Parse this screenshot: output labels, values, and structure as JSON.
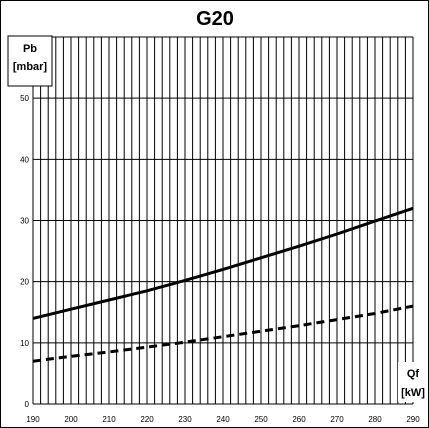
{
  "chart_data": {
    "type": "line",
    "title": "G20",
    "ylabel_line1": "Pb",
    "ylabel_line2": "[mbar]",
    "xlabel_line1": "Qf",
    "xlabel_line2": "[kW]",
    "xlim": [
      190,
      290
    ],
    "ylim": [
      0,
      60
    ],
    "x_ticks": [
      190,
      200,
      210,
      220,
      230,
      240,
      250,
      260,
      270,
      280,
      290
    ],
    "y_ticks": [
      0,
      10,
      20,
      30,
      40,
      50
    ],
    "x_grid_step": 2,
    "grid": true,
    "series": [
      {
        "style": "solid",
        "x": [
          190,
          200,
          210,
          220,
          230,
          240,
          250,
          260,
          270,
          280,
          290
        ],
        "y": [
          14.0,
          15.5,
          17.0,
          18.5,
          20.2,
          22.0,
          23.9,
          25.8,
          27.8,
          29.9,
          32.0
        ]
      },
      {
        "style": "dashed",
        "x": [
          190,
          200,
          210,
          220,
          230,
          240,
          250,
          260,
          270,
          280,
          290
        ],
        "y": [
          7.0,
          7.8,
          8.5,
          9.3,
          10.1,
          11.0,
          11.9,
          12.8,
          13.8,
          14.8,
          16.0
        ]
      }
    ]
  }
}
